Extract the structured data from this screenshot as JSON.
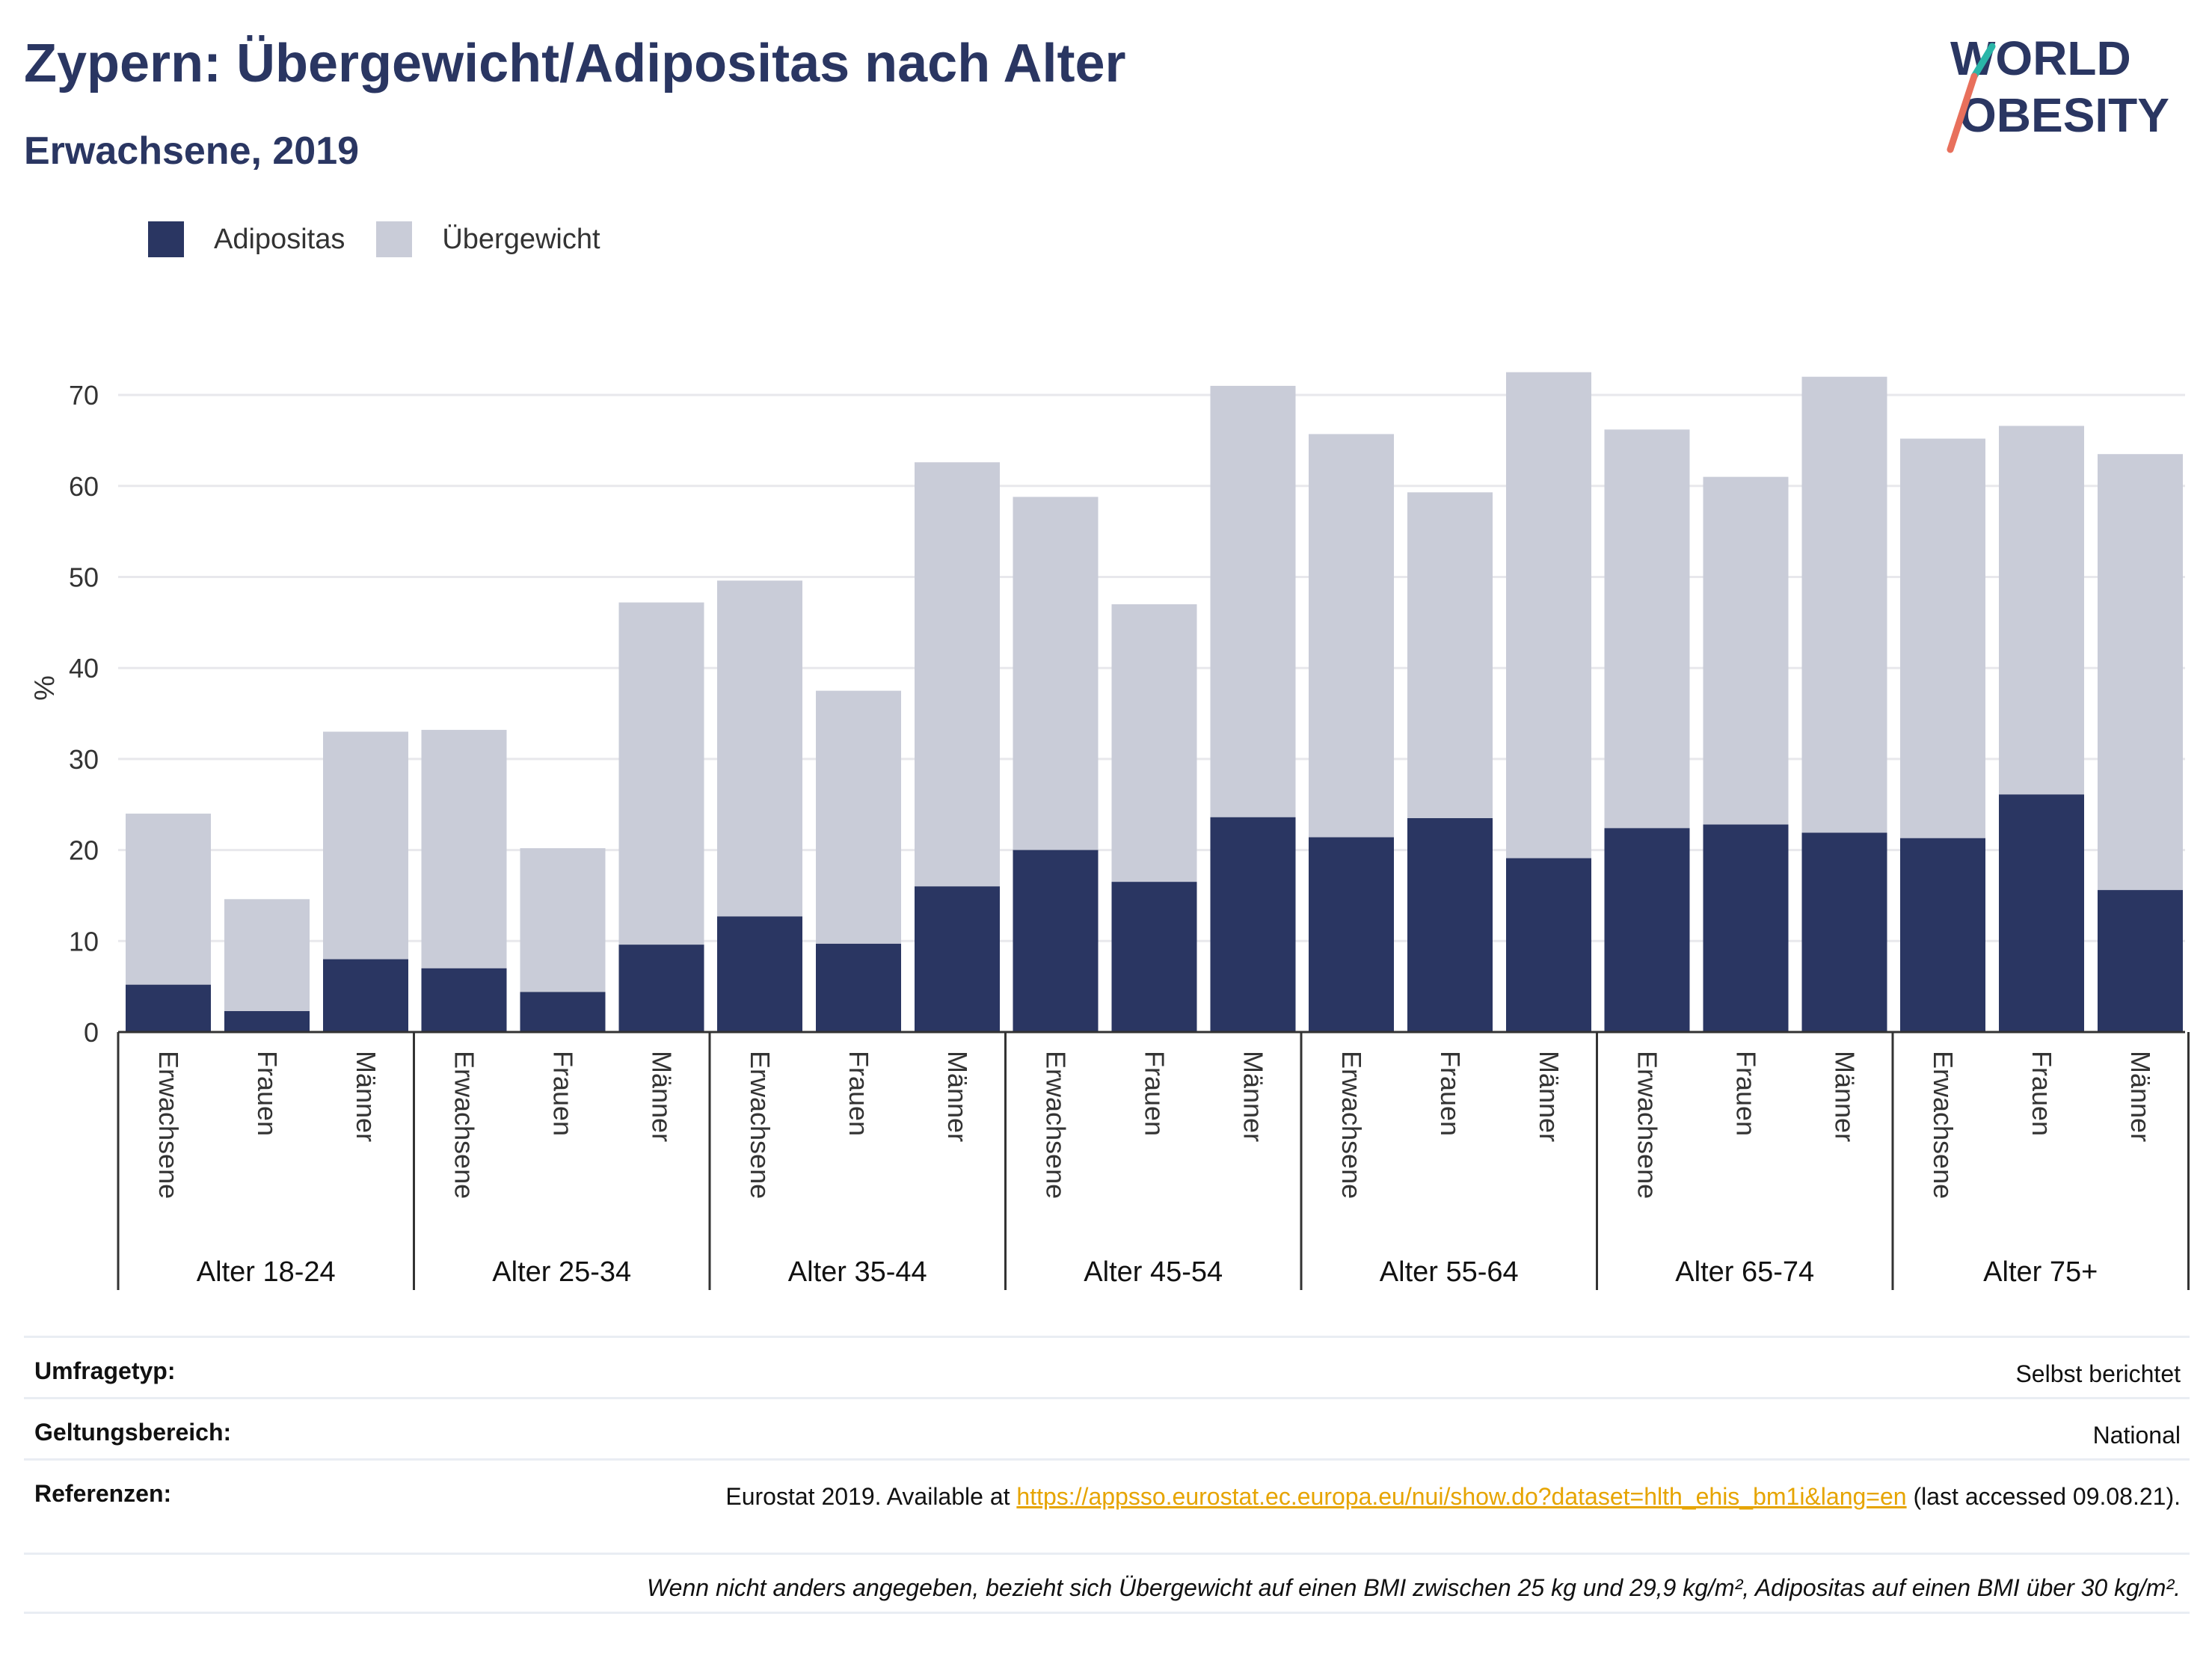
{
  "title": "Zypern: Übergewicht/Adipositas nach Alter",
  "subtitle": "Erwachsene, 2019",
  "logo": {
    "line1": "WORLD",
    "line2": "OBESITY"
  },
  "legend": [
    {
      "label": "Adipositas",
      "color": "#2a3662"
    },
    {
      "label": "Übergewicht",
      "color": "#c9ccd8"
    }
  ],
  "chart_data": {
    "type": "bar",
    "stacked": "overlay",
    "ylabel": "%",
    "ylim": [
      0,
      75
    ],
    "yticks": [
      0,
      10,
      20,
      30,
      40,
      50,
      60,
      70
    ],
    "grid": true,
    "legend_position": "top-left",
    "groups": [
      {
        "label": "Alter 18-24",
        "bars": [
          {
            "category": "Erwachsene",
            "adipositas": 5.2,
            "uebergewicht": 24.0
          },
          {
            "category": "Frauen",
            "adipositas": 2.3,
            "uebergewicht": 14.6
          },
          {
            "category": "Männer",
            "adipositas": 8.0,
            "uebergewicht": 33.0
          }
        ]
      },
      {
        "label": "Alter 25-34",
        "bars": [
          {
            "category": "Erwachsene",
            "adipositas": 7.0,
            "uebergewicht": 33.2
          },
          {
            "category": "Frauen",
            "adipositas": 4.4,
            "uebergewicht": 20.2
          },
          {
            "category": "Männer",
            "adipositas": 9.6,
            "uebergewicht": 47.2
          }
        ]
      },
      {
        "label": "Alter 35-44",
        "bars": [
          {
            "category": "Erwachsene",
            "adipositas": 12.7,
            "uebergewicht": 49.6
          },
          {
            "category": "Frauen",
            "adipositas": 9.7,
            "uebergewicht": 37.5
          },
          {
            "category": "Männer",
            "adipositas": 16.0,
            "uebergewicht": 62.6
          }
        ]
      },
      {
        "label": "Alter 45-54",
        "bars": [
          {
            "category": "Erwachsene",
            "adipositas": 20.0,
            "uebergewicht": 58.8
          },
          {
            "category": "Frauen",
            "adipositas": 16.5,
            "uebergewicht": 47.0
          },
          {
            "category": "Männer",
            "adipositas": 23.6,
            "uebergewicht": 71.0
          }
        ]
      },
      {
        "label": "Alter 55-64",
        "bars": [
          {
            "category": "Erwachsene",
            "adipositas": 21.4,
            "uebergewicht": 65.7
          },
          {
            "category": "Frauen",
            "adipositas": 23.5,
            "uebergewicht": 59.3
          },
          {
            "category": "Männer",
            "adipositas": 19.1,
            "uebergewicht": 72.5
          }
        ]
      },
      {
        "label": "Alter 65-74",
        "bars": [
          {
            "category": "Erwachsene",
            "adipositas": 22.4,
            "uebergewicht": 66.2
          },
          {
            "category": "Frauen",
            "adipositas": 22.8,
            "uebergewicht": 61.0
          },
          {
            "category": "Männer",
            "adipositas": 21.9,
            "uebergewicht": 72.0
          }
        ]
      },
      {
        "label": "Alter 75+",
        "bars": [
          {
            "category": "Erwachsene",
            "adipositas": 21.3,
            "uebergewicht": 65.2
          },
          {
            "category": "Frauen",
            "adipositas": 26.1,
            "uebergewicht": 66.6
          },
          {
            "category": "Männer",
            "adipositas": 15.6,
            "uebergewicht": 63.5
          }
        ]
      }
    ]
  },
  "info": {
    "survey_label": "Umfragetyp:",
    "survey_value": "Selbst berichtet",
    "scope_label": "Geltungsbereich:",
    "scope_value": "National",
    "refs_label": "Referenzen:",
    "refs_prefix": "Eurostat 2019. Available at ",
    "refs_link": "https://appsso.eurostat.ec.europa.eu/nui/show.do?dataset=hlth_ehis_bm1i&lang=en",
    "refs_suffix": " (last accessed 09.08.21).",
    "note": "Wenn nicht anders angegeben, bezieht sich Übergewicht auf einen BMI zwischen 25 kg und 29,9 kg/m², Adipositas auf einen BMI über 30 kg/m²."
  }
}
